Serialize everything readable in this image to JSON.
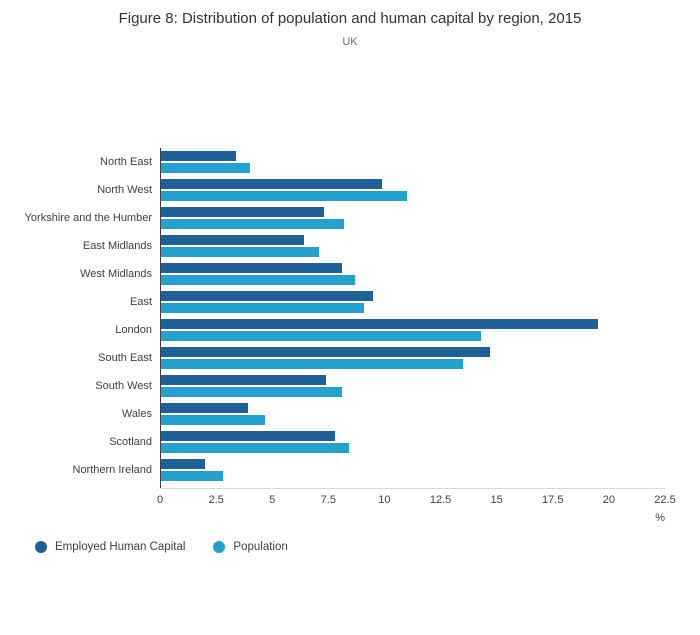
{
  "title": "Figure 8: Distribution of population and human capital by region, 2015",
  "subtitle": "UK",
  "chart_data": {
    "type": "bar",
    "orientation": "horizontal",
    "title": "Figure 8: Distribution of population and human capital by region, 2015",
    "subtitle": "UK",
    "xlabel": "%",
    "ylabel": "",
    "xlim": [
      0,
      22.5
    ],
    "xticks": [
      0,
      2.5,
      5,
      7.5,
      10,
      12.5,
      15,
      17.5,
      20,
      22.5
    ],
    "grid": false,
    "legend_position": "bottom-left",
    "categories": [
      "North East",
      "North West",
      "Yorkshire and the Humber",
      "East Midlands",
      "West Midlands",
      "East",
      "London",
      "South East",
      "South West",
      "Wales",
      "Scotland",
      "Northern Ireland"
    ],
    "series": [
      {
        "name": "Employed Human Capital",
        "color": "#206095",
        "values": [
          3.4,
          9.9,
          7.3,
          6.4,
          8.1,
          9.5,
          19.5,
          14.7,
          7.4,
          3.9,
          7.8,
          2.0
        ]
      },
      {
        "name": "Population",
        "color": "#27A0CC",
        "values": [
          4.0,
          11.0,
          8.2,
          7.1,
          8.7,
          9.1,
          14.3,
          13.5,
          8.1,
          4.7,
          8.4,
          2.8
        ]
      }
    ]
  }
}
